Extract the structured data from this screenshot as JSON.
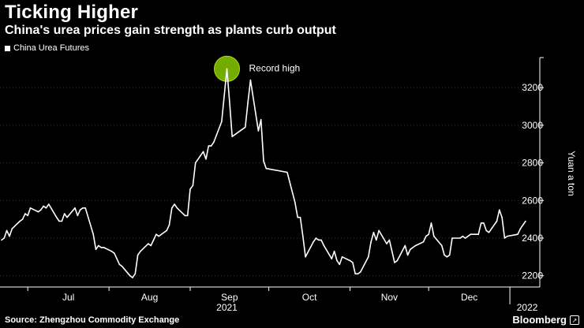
{
  "title": "Ticking Higher",
  "subtitle": "China's urea prices gain strength as plants curb output",
  "source": "Source: Zhengzhou Commodity Exchange",
  "brand": "Bloomberg",
  "colors": {
    "background": "#000000",
    "line": "#ffffff",
    "highlight": "#7fbf00"
  },
  "chart_data": {
    "type": "line",
    "title": "Ticking Higher",
    "subtitle": "China's urea prices gain strength as plants curb output",
    "ylabel": "Yuan a ton",
    "xlabel": "",
    "ylim": [
      2140,
      3360
    ],
    "y_ticks": [
      2200,
      2400,
      2600,
      2800,
      3000,
      3200
    ],
    "y_axis_side": "right",
    "x_tick_labels": [
      "Jul",
      "Aug",
      "Sep",
      "Oct",
      "Nov",
      "Dec",
      "2022"
    ],
    "x_group_labels": [
      "2021"
    ],
    "grid": true,
    "legend": "top-left",
    "annotation": "Record high",
    "series": [
      {
        "name": "China Urea Futures",
        "x": [
          "2021-06-21",
          "2021-06-22",
          "2021-06-23",
          "2021-06-24",
          "2021-06-25",
          "2021-06-28",
          "2021-06-29",
          "2021-06-30",
          "2021-07-01",
          "2021-07-02",
          "2021-07-05",
          "2021-07-06",
          "2021-07-07",
          "2021-07-08",
          "2021-07-09",
          "2021-07-12",
          "2021-07-13",
          "2021-07-14",
          "2021-07-15",
          "2021-07-16",
          "2021-07-19",
          "2021-07-20",
          "2021-07-21",
          "2021-07-22",
          "2021-07-23",
          "2021-07-26",
          "2021-07-27",
          "2021-07-28",
          "2021-07-29",
          "2021-07-30",
          "2021-08-02",
          "2021-08-03",
          "2021-08-04",
          "2021-08-05",
          "2021-08-06",
          "2021-08-09",
          "2021-08-10",
          "2021-08-11",
          "2021-08-12",
          "2021-08-13",
          "2021-08-16",
          "2021-08-17",
          "2021-08-18",
          "2021-08-19",
          "2021-08-20",
          "2021-08-23",
          "2021-08-24",
          "2021-08-25",
          "2021-08-26",
          "2021-08-27",
          "2021-08-30",
          "2021-08-31",
          "2021-09-01",
          "2021-09-02",
          "2021-09-03",
          "2021-09-06",
          "2021-09-07",
          "2021-09-08",
          "2021-09-09",
          "2021-09-10",
          "2021-09-13",
          "2021-09-14",
          "2021-09-15",
          "2021-09-16",
          "2021-09-17",
          "2021-09-22",
          "2021-09-23",
          "2021-09-24",
          "2021-09-27",
          "2021-09-28",
          "2021-09-29",
          "2021-09-30",
          "2021-10-08",
          "2021-10-11",
          "2021-10-12",
          "2021-10-13",
          "2021-10-14",
          "2021-10-15",
          "2021-10-18",
          "2021-10-19",
          "2021-10-20",
          "2021-10-21",
          "2021-10-22",
          "2021-10-25",
          "2021-10-26",
          "2021-10-27",
          "2021-10-28",
          "2021-10-29",
          "2021-11-01",
          "2021-11-02",
          "2021-11-03",
          "2021-11-04",
          "2021-11-05",
          "2021-11-08",
          "2021-11-09",
          "2021-11-10",
          "2021-11-11",
          "2021-11-12",
          "2021-11-15",
          "2021-11-16",
          "2021-11-17",
          "2021-11-18",
          "2021-11-19",
          "2021-11-22",
          "2021-11-23",
          "2021-11-24",
          "2021-11-25",
          "2021-11-26",
          "2021-11-29",
          "2021-11-30",
          "2021-12-01",
          "2021-12-02",
          "2021-12-03",
          "2021-12-06",
          "2021-12-07",
          "2021-12-08",
          "2021-12-09",
          "2021-12-10",
          "2021-12-13",
          "2021-12-14",
          "2021-12-15",
          "2021-12-16",
          "2021-12-17",
          "2021-12-20",
          "2021-12-21",
          "2021-12-22",
          "2021-12-23",
          "2021-12-24",
          "2021-12-27",
          "2021-12-28",
          "2021-12-29",
          "2021-12-30",
          "2021-12-31",
          "2022-01-04",
          "2022-01-05",
          "2022-01-06",
          "2022-01-07"
        ],
        "values": [
          2390,
          2400,
          2440,
          2410,
          2450,
          2490,
          2500,
          2530,
          2520,
          2560,
          2540,
          2550,
          2570,
          2560,
          2580,
          2510,
          2490,
          2490,
          2530,
          2510,
          2560,
          2520,
          2550,
          2560,
          2560,
          2420,
          2340,
          2360,
          2350,
          2350,
          2330,
          2320,
          2290,
          2260,
          2250,
          2200,
          2190,
          2210,
          2310,
          2330,
          2370,
          2360,
          2390,
          2420,
          2410,
          2440,
          2470,
          2560,
          2580,
          2560,
          2520,
          2520,
          2660,
          2680,
          2800,
          2860,
          2820,
          2890,
          2890,
          2910,
          3020,
          3160,
          3300,
          3130,
          2940,
          2990,
          3120,
          3240,
          2970,
          3030,
          2810,
          2770,
          2750,
          2590,
          2510,
          2510,
          2410,
          2300,
          2380,
          2400,
          2390,
          2390,
          2360,
          2290,
          2330,
          2280,
          2260,
          2300,
          2280,
          2270,
          2210,
          2210,
          2220,
          2300,
          2380,
          2430,
          2390,
          2440,
          2370,
          2390,
          2330,
          2270,
          2280,
          2360,
          2310,
          2340,
          2350,
          2360,
          2380,
          2410,
          2420,
          2480,
          2410,
          2360,
          2310,
          2300,
          2310,
          2400,
          2400,
          2410,
          2400,
          2410,
          2420,
          2420,
          2480,
          2480,
          2440,
          2430,
          2490,
          2550,
          2510,
          2400,
          2410,
          2420,
          2450,
          2470,
          2490
        ]
      }
    ]
  }
}
